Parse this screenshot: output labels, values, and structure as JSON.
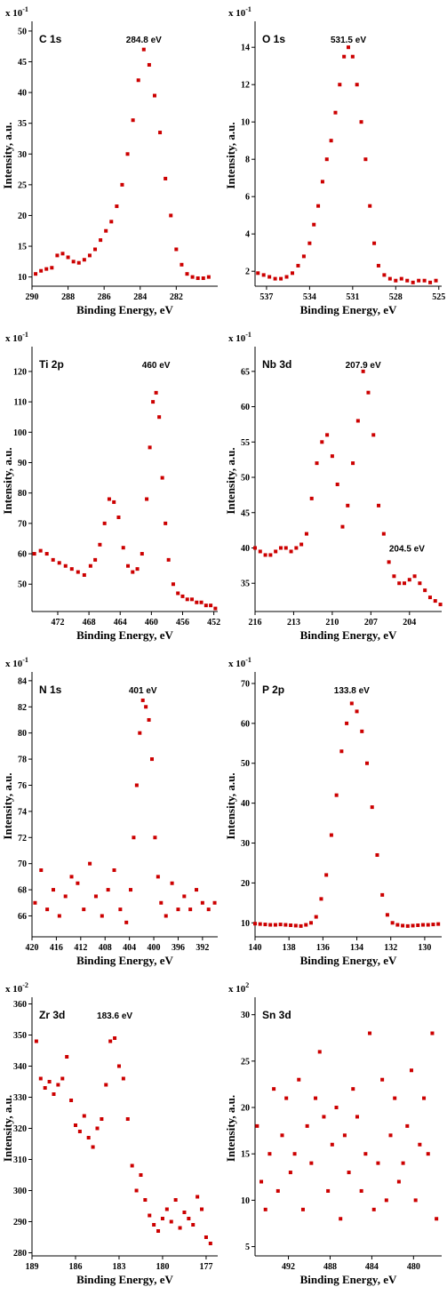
{
  "colors": {
    "marker": "#cc0000",
    "axis": "#000000"
  },
  "chart_data": [
    {
      "type": "scatter",
      "title": "C 1s",
      "annotation": "284.8 eV",
      "xlabel": "Binding Energy, eV",
      "ylabel": "Intensity, a.u.",
      "multiplier": "x 10",
      "multiplier_exp": "-1",
      "xlim": [
        290,
        279.7
      ],
      "ylim": [
        8.5,
        51
      ],
      "xticks": [
        290,
        288,
        286,
        284,
        282
      ],
      "yticks": [
        10,
        15,
        20,
        25,
        30,
        35,
        40,
        45,
        50
      ],
      "x": [
        289.8,
        289.5,
        289.2,
        288.9,
        288.6,
        288.3,
        288.0,
        287.7,
        287.4,
        287.1,
        286.8,
        286.5,
        286.2,
        285.9,
        285.6,
        285.3,
        285.0,
        284.7,
        284.4,
        284.1,
        283.8,
        283.5,
        283.2,
        282.9,
        282.6,
        282.3,
        282.0,
        281.7,
        281.4,
        281.1,
        280.8,
        280.5,
        280.2
      ],
      "y": [
        10.5,
        11.0,
        11.3,
        11.5,
        13.5,
        13.8,
        13.2,
        12.5,
        12.3,
        12.8,
        13.5,
        14.5,
        16.0,
        17.5,
        19.0,
        21.5,
        25.0,
        30.0,
        35.5,
        42.0,
        47.0,
        44.5,
        39.5,
        33.5,
        26.0,
        20.0,
        14.5,
        12.0,
        10.5,
        10.0,
        9.8,
        9.8,
        10.0
      ]
    },
    {
      "type": "scatter",
      "title": "O 1s",
      "annotation": "531.5 eV",
      "xlabel": "Binding Energy, eV",
      "ylabel": "Intensity, a.u.",
      "multiplier": "x 10",
      "multiplier_exp": "-1",
      "xlim": [
        537.8,
        524.8
      ],
      "ylim": [
        1.2,
        15.2
      ],
      "xticks": [
        537,
        534,
        531,
        528,
        525
      ],
      "yticks": [
        2,
        4,
        6,
        8,
        10,
        12,
        14
      ],
      "x": [
        537.6,
        537.2,
        536.8,
        536.4,
        536.0,
        535.6,
        535.2,
        534.8,
        534.4,
        534.0,
        533.7,
        533.4,
        533.1,
        532.8,
        532.5,
        532.2,
        531.9,
        531.6,
        531.3,
        531.0,
        530.7,
        530.4,
        530.1,
        529.8,
        529.5,
        529.2,
        528.8,
        528.4,
        528.0,
        527.6,
        527.2,
        526.8,
        526.4,
        526.0,
        525.6,
        525.2
      ],
      "y": [
        1.9,
        1.8,
        1.7,
        1.6,
        1.6,
        1.7,
        1.9,
        2.3,
        2.8,
        3.5,
        4.5,
        5.5,
        6.8,
        8.0,
        9.0,
        10.5,
        12.0,
        13.5,
        14.0,
        13.5,
        12.0,
        10.0,
        8.0,
        5.5,
        3.5,
        2.3,
        1.8,
        1.6,
        1.5,
        1.6,
        1.5,
        1.4,
        1.5,
        1.5,
        1.4,
        1.5
      ]
    },
    {
      "type": "scatter",
      "title": "Ti 2p",
      "annotation": "460 eV",
      "xlabel": "Binding Energy, eV",
      "ylabel": "Intensity, a.u.",
      "multiplier": "x 10",
      "multiplier_exp": "-1",
      "xlim": [
        475.3,
        451.5
      ],
      "ylim": [
        41,
        127
      ],
      "xticks": [
        472,
        468,
        464,
        460,
        456,
        452
      ],
      "yticks": [
        50,
        60,
        70,
        80,
        90,
        100,
        110,
        120
      ],
      "x": [
        475.0,
        474.2,
        473.4,
        472.6,
        471.8,
        471.0,
        470.2,
        469.4,
        468.6,
        467.8,
        467.2,
        466.6,
        466.0,
        465.4,
        464.8,
        464.2,
        463.6,
        463.0,
        462.4,
        461.8,
        461.2,
        460.6,
        460.2,
        459.8,
        459.4,
        459.0,
        458.6,
        458.2,
        457.8,
        457.2,
        456.6,
        456.0,
        455.4,
        454.8,
        454.2,
        453.6,
        453.0,
        452.4,
        451.8
      ],
      "y": [
        60,
        61,
        60,
        58,
        57,
        56,
        55,
        54,
        53,
        56,
        58,
        63,
        70,
        78,
        77,
        72,
        62,
        56,
        54,
        55,
        60,
        78,
        95,
        110,
        113,
        105,
        85,
        70,
        58,
        50,
        47,
        46,
        45,
        45,
        44,
        44,
        43,
        43,
        42
      ]
    },
    {
      "type": "scatter",
      "title": "Nb 3d",
      "annotation": "207.9 eV",
      "annotation2": "204.5 eV",
      "xlabel": "Binding Energy, eV",
      "ylabel": "Intensity, a.u.",
      "multiplier": "x 10",
      "multiplier_exp": "-1",
      "xlim": [
        216,
        201.5
      ],
      "ylim": [
        31,
        68
      ],
      "xticks": [
        216,
        213,
        210,
        207,
        204
      ],
      "yticks": [
        35,
        40,
        45,
        50,
        55,
        60,
        65
      ],
      "x": [
        216.0,
        215.6,
        215.2,
        214.8,
        214.4,
        214.0,
        213.6,
        213.2,
        212.8,
        212.4,
        212.0,
        211.6,
        211.2,
        210.8,
        210.4,
        210.0,
        209.6,
        209.2,
        208.8,
        208.4,
        208.0,
        207.6,
        207.2,
        206.8,
        206.4,
        206.0,
        205.6,
        205.2,
        204.8,
        204.4,
        204.0,
        203.6,
        203.2,
        202.8,
        202.4,
        202.0,
        201.6
      ],
      "y": [
        40,
        39.5,
        39,
        39,
        39.5,
        40,
        40,
        39.5,
        40,
        40.5,
        42,
        47,
        52,
        55,
        56,
        53,
        49,
        43,
        46,
        52,
        58,
        65,
        62,
        56,
        46,
        42,
        38,
        36,
        35,
        35,
        35.5,
        36,
        35,
        34,
        33,
        32.5,
        32
      ]
    },
    {
      "type": "scatter",
      "title": "N 1s",
      "annotation": "401 eV",
      "xlabel": "Binding Energy, eV",
      "ylabel": "Intensity, a.u.",
      "multiplier": "x 10",
      "multiplier_exp": "-1",
      "xlim": [
        420,
        389.5
      ],
      "ylim": [
        64.4,
        84.4
      ],
      "xticks": [
        420,
        416,
        412,
        408,
        404,
        400,
        396,
        392
      ],
      "yticks": [
        66,
        68,
        70,
        72,
        74,
        76,
        78,
        80,
        82,
        84
      ],
      "x": [
        419.5,
        418.5,
        417.5,
        416.5,
        415.5,
        414.5,
        413.5,
        412.5,
        411.5,
        410.5,
        409.5,
        408.5,
        407.5,
        406.5,
        405.5,
        404.5,
        403.8,
        403.3,
        402.8,
        402.3,
        401.8,
        401.3,
        400.8,
        400.3,
        399.8,
        399.3,
        398.8,
        398.0,
        397.0,
        396.0,
        395.0,
        394.0,
        393.0,
        392.0,
        391.0,
        390.0
      ],
      "y": [
        67.0,
        69.5,
        66.5,
        68.0,
        66.0,
        67.5,
        69.0,
        68.5,
        66.5,
        70.0,
        67.5,
        66.0,
        68.0,
        69.5,
        66.5,
        65.5,
        68.0,
        72.0,
        76.0,
        80.0,
        82.5,
        82.0,
        81.0,
        78.0,
        72.0,
        69.0,
        67.0,
        66.0,
        68.5,
        66.5,
        67.5,
        66.5,
        68.0,
        67.0,
        66.5,
        67.0
      ]
    },
    {
      "type": "scatter",
      "title": "P 2p",
      "annotation": "133.8 eV",
      "xlabel": "Binding Energy, eV",
      "ylabel": "Intensity, a.u.",
      "multiplier": "x 10",
      "multiplier_exp": "-1",
      "xlim": [
        140,
        129
      ],
      "ylim": [
        6.5,
        72
      ],
      "xticks": [
        140,
        138,
        136,
        134,
        132,
        130
      ],
      "yticks": [
        10,
        20,
        30,
        40,
        50,
        60,
        70
      ],
      "x": [
        140.0,
        139.7,
        139.4,
        139.1,
        138.8,
        138.5,
        138.2,
        137.9,
        137.6,
        137.3,
        137.0,
        136.7,
        136.4,
        136.1,
        135.8,
        135.5,
        135.2,
        134.9,
        134.6,
        134.3,
        134.0,
        133.7,
        133.4,
        133.1,
        132.8,
        132.5,
        132.2,
        131.9,
        131.6,
        131.3,
        131.0,
        130.7,
        130.4,
        130.1,
        129.8,
        129.5,
        129.2
      ],
      "y": [
        9.8,
        9.7,
        9.6,
        9.5,
        9.5,
        9.6,
        9.5,
        9.4,
        9.3,
        9.2,
        9.5,
        10.0,
        11.5,
        16.0,
        22.0,
        32.0,
        42.0,
        53.0,
        60.0,
        65.0,
        63.0,
        58.0,
        50.0,
        39.0,
        27.0,
        17.0,
        12.0,
        10.0,
        9.5,
        9.3,
        9.2,
        9.3,
        9.4,
        9.5,
        9.5,
        9.6,
        9.7
      ]
    },
    {
      "type": "scatter",
      "title": "Zr 3d",
      "annotation": "183.6 eV",
      "xlabel": "Binding Energy, eV",
      "ylabel": "Intensity, a.u.",
      "multiplier": "x 10",
      "multiplier_exp": "-2",
      "xlim": [
        189,
        176.2
      ],
      "ylim": [
        279,
        361
      ],
      "xticks": [
        189,
        186,
        183,
        180,
        177
      ],
      "yticks": [
        280,
        290,
        300,
        310,
        320,
        330,
        340,
        350,
        360
      ],
      "x": [
        188.7,
        188.4,
        188.1,
        187.8,
        187.5,
        187.2,
        186.9,
        186.6,
        186.3,
        186.0,
        185.7,
        185.4,
        185.1,
        184.8,
        184.5,
        184.2,
        183.9,
        183.6,
        183.3,
        183.0,
        182.7,
        182.4,
        182.1,
        181.8,
        181.5,
        181.2,
        180.9,
        180.6,
        180.3,
        180.0,
        179.7,
        179.4,
        179.1,
        178.8,
        178.5,
        178.2,
        177.9,
        177.6,
        177.3,
        177.0,
        176.7
      ],
      "y": [
        348,
        336,
        333,
        335,
        331,
        334,
        336,
        343,
        329,
        321,
        319,
        324,
        317,
        314,
        320,
        323,
        334,
        348,
        349,
        340,
        336,
        323,
        308,
        300,
        305,
        297,
        292,
        289,
        287,
        291,
        294,
        290,
        297,
        288,
        293,
        291,
        289,
        298,
        294,
        285,
        283
      ]
    },
    {
      "type": "scatter",
      "title": "Sn 3d",
      "xlabel": "Binding Energy, eV",
      "ylabel": "Intensity, a.u.",
      "multiplier": "x 10",
      "multiplier_exp": "2",
      "xlim": [
        495.2,
        477.3
      ],
      "ylim": [
        4,
        31.5
      ],
      "xticks": [
        492,
        488,
        484,
        480
      ],
      "yticks": [
        5,
        10,
        15,
        20,
        25,
        30
      ],
      "x": [
        495.0,
        494.6,
        494.2,
        493.8,
        493.4,
        493.0,
        492.6,
        492.2,
        491.8,
        491.4,
        491.0,
        490.6,
        490.2,
        489.8,
        489.4,
        489.0,
        488.6,
        488.2,
        487.8,
        487.4,
        487.0,
        486.6,
        486.2,
        485.8,
        485.4,
        485.0,
        484.6,
        484.2,
        483.8,
        483.4,
        483.0,
        482.6,
        482.2,
        481.8,
        481.4,
        481.0,
        480.6,
        480.2,
        479.8,
        479.4,
        479.0,
        478.6,
        478.2,
        477.8
      ],
      "y": [
        18,
        12,
        9,
        15,
        22,
        11,
        17,
        21,
        13,
        15,
        23,
        9,
        18,
        14,
        21,
        26,
        19,
        11,
        16,
        20,
        8,
        17,
        13,
        22,
        19,
        11,
        15,
        28,
        9,
        14,
        23,
        10,
        17,
        21,
        12,
        14,
        18,
        24,
        10,
        16,
        21,
        15,
        28,
        8
      ]
    }
  ]
}
